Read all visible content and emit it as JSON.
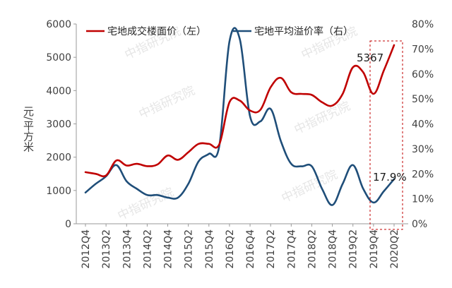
{
  "chart_data": {
    "type": "line",
    "categories": [
      "2012Q4",
      "2013Q1",
      "2013Q2",
      "2013Q3",
      "2013Q4",
      "2014Q1",
      "2014Q2",
      "2014Q3",
      "2014Q4",
      "2015Q1",
      "2015Q2",
      "2015Q3",
      "2015Q4",
      "2016Q1",
      "2016Q2",
      "2016Q3",
      "2016Q4",
      "2017Q1",
      "2017Q2",
      "2017Q3",
      "2017Q4",
      "2018Q1",
      "2018Q2",
      "2018Q3",
      "2018Q4",
      "2019Q1",
      "2019Q2",
      "2019Q3",
      "2019Q4",
      "2020Q1",
      "2020Q2"
    ],
    "x_tick_labels": [
      "2012Q4",
      "2013Q2",
      "2013Q4",
      "2014Q2",
      "2014Q4",
      "2015Q2",
      "2015Q4",
      "2016Q2",
      "2016Q4",
      "2017Q2",
      "2017Q4",
      "2018Q2",
      "2018Q4",
      "2019Q2",
      "2019Q4",
      "2020Q2"
    ],
    "series": [
      {
        "name": "宅地成交楼面价（左）",
        "axis": "left",
        "color": "#c00000",
        "values": [
          1550,
          1500,
          1450,
          1900,
          1750,
          1800,
          1730,
          1780,
          2050,
          1920,
          2150,
          2400,
          2400,
          2380,
          3650,
          3700,
          3400,
          3420,
          4100,
          4380,
          3950,
          3900,
          3870,
          3650,
          3550,
          3900,
          4700,
          4550,
          3900,
          4600,
          5367
        ]
      },
      {
        "name": "宅地平均溢价率（右）",
        "axis": "right",
        "color": "#1f4e79",
        "values": [
          12.5,
          16,
          19,
          23.5,
          17,
          14,
          11.5,
          11.5,
          10.5,
          10.5,
          16,
          25,
          28,
          31,
          73,
          74,
          43,
          41,
          46,
          33,
          24,
          23,
          23,
          14,
          7.5,
          16,
          23.5,
          14,
          8.5,
          13,
          17.9
        ]
      }
    ],
    "ylabel": "元/平方米",
    "ylim": [
      0,
      6000
    ],
    "yticks": [
      "0",
      "1000",
      "2000",
      "3000",
      "4000",
      "5000",
      "6000"
    ],
    "y2lim": [
      0,
      80
    ],
    "y2ticks": [
      "0%",
      "10%",
      "20%",
      "30%",
      "40%",
      "50%",
      "60%",
      "70%",
      "80%"
    ],
    "annotations": [
      "5367",
      "17.9%"
    ],
    "grid": false,
    "legend": "top",
    "highlight": "dashed box around 2020Q1–2020Q2"
  },
  "watermark": "中指研究院",
  "colors": {
    "left_series": "#c00000",
    "right_series": "#1f4e79",
    "highlight_box": "#c00000"
  }
}
